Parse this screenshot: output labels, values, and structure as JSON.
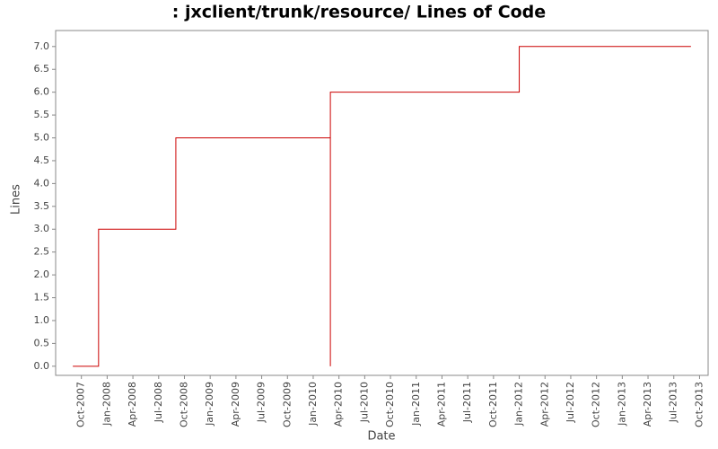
{
  "chart_data": {
    "type": "line",
    "step": true,
    "title": ": jxclient/trunk/resource/ Lines of Code",
    "x_label": "Date",
    "y_label": "Lines",
    "x": [
      "2007-09",
      "2007-12",
      "2007-12",
      "2008-09",
      "2010-03",
      "2010-03",
      "2012-01",
      "2013-09"
    ],
    "series": [
      {
        "name": "Lines",
        "color": "#cc0000",
        "values": [
          0,
          1,
          3,
          5,
          0,
          6,
          7,
          7
        ]
      }
    ],
    "xlim": [
      "2007-07",
      "2013-11"
    ],
    "xticks": [
      {
        "value": "2007-10",
        "label": "Oct-2007"
      },
      {
        "value": "2008-01",
        "label": "Jan-2008"
      },
      {
        "value": "2008-04",
        "label": "Apr-2008"
      },
      {
        "value": "2008-07",
        "label": "Jul-2008"
      },
      {
        "value": "2008-10",
        "label": "Oct-2008"
      },
      {
        "value": "2009-01",
        "label": "Jan-2009"
      },
      {
        "value": "2009-04",
        "label": "Apr-2009"
      },
      {
        "value": "2009-07",
        "label": "Jul-2009"
      },
      {
        "value": "2009-10",
        "label": "Oct-2009"
      },
      {
        "value": "2010-01",
        "label": "Jan-2010"
      },
      {
        "value": "2010-04",
        "label": "Apr-2010"
      },
      {
        "value": "2010-07",
        "label": "Jul-2010"
      },
      {
        "value": "2010-10",
        "label": "Oct-2010"
      },
      {
        "value": "2011-01",
        "label": "Jan-2011"
      },
      {
        "value": "2011-04",
        "label": "Apr-2011"
      },
      {
        "value": "2011-07",
        "label": "Jul-2011"
      },
      {
        "value": "2011-10",
        "label": "Oct-2011"
      },
      {
        "value": "2012-01",
        "label": "Jan-2012"
      },
      {
        "value": "2012-04",
        "label": "Apr-2012"
      },
      {
        "value": "2012-07",
        "label": "Jul-2012"
      },
      {
        "value": "2012-10",
        "label": "Oct-2012"
      },
      {
        "value": "2013-01",
        "label": "Jan-2013"
      },
      {
        "value": "2013-04",
        "label": "Apr-2013"
      },
      {
        "value": "2013-07",
        "label": "Jul-2013"
      },
      {
        "value": "2013-10",
        "label": "Oct-2013"
      }
    ],
    "ylim": [
      -0.2,
      7.35
    ],
    "yticks": [
      {
        "value": 0,
        "label": "0.0"
      },
      0.5,
      {
        "value": 1,
        "label": "1.0"
      },
      1.5,
      {
        "value": 2,
        "label": "2.0"
      },
      2.5,
      {
        "value": 3,
        "label": "3.0"
      },
      3.5,
      {
        "value": 4,
        "label": "4.0"
      },
      4.5,
      {
        "value": 5,
        "label": "5.0"
      },
      5.5,
      {
        "value": 6,
        "label": "6.0"
      },
      6.5,
      {
        "value": 7,
        "label": "7.0"
      }
    ],
    "grid": false
  }
}
